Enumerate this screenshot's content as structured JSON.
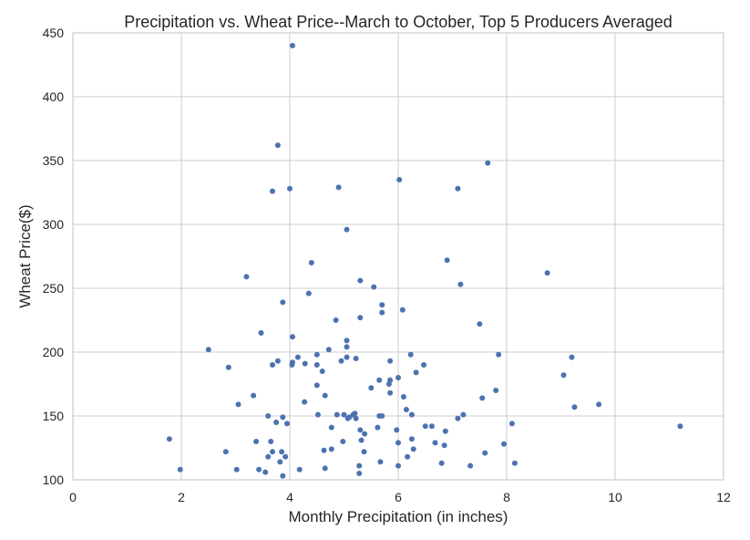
{
  "chart_data": {
    "type": "scatter",
    "title": "Precipitation vs. Wheat Price--March to October, Top 5 Producers Averaged",
    "xlabel": "Monthly Precipitation (in inches)",
    "ylabel": "Wheat Price($)",
    "xlim": [
      0,
      12
    ],
    "ylim": [
      100,
      450
    ],
    "xticks": [
      0,
      2,
      4,
      6,
      8,
      10,
      12
    ],
    "yticks": [
      100,
      150,
      200,
      250,
      300,
      350,
      400,
      450
    ],
    "grid": true,
    "marker_color": "#4c72b0",
    "series": [
      {
        "points": [
          [
            4.05,
            440
          ],
          [
            3.78,
            362
          ],
          [
            7.65,
            348
          ],
          [
            6.02,
            335
          ],
          [
            4.9,
            329
          ],
          [
            4.0,
            328
          ],
          [
            3.68,
            326
          ],
          [
            7.1,
            328
          ],
          [
            5.05,
            296
          ],
          [
            6.9,
            272
          ],
          [
            4.4,
            270
          ],
          [
            8.75,
            262
          ],
          [
            3.2,
            259
          ],
          [
            5.3,
            256
          ],
          [
            7.15,
            253
          ],
          [
            5.55,
            251
          ],
          [
            4.35,
            246
          ],
          [
            3.87,
            239
          ],
          [
            5.7,
            237
          ],
          [
            6.08,
            233
          ],
          [
            5.7,
            231
          ],
          [
            5.3,
            227
          ],
          [
            4.85,
            225
          ],
          [
            7.5,
            222
          ],
          [
            3.47,
            215
          ],
          [
            4.05,
            212
          ],
          [
            5.05,
            209
          ],
          [
            5.05,
            204
          ],
          [
            2.5,
            202
          ],
          [
            4.72,
            202
          ],
          [
            4.5,
            198
          ],
          [
            6.23,
            198
          ],
          [
            7.85,
            198
          ],
          [
            4.15,
            196
          ],
          [
            5.05,
            196
          ],
          [
            9.2,
            196
          ],
          [
            3.78,
            193
          ],
          [
            5.22,
            195
          ],
          [
            5.85,
            193
          ],
          [
            4.05,
            192
          ],
          [
            4.95,
            193
          ],
          [
            4.28,
            191
          ],
          [
            3.68,
            190
          ],
          [
            4.04,
            190
          ],
          [
            4.5,
            190
          ],
          [
            6.47,
            190
          ],
          [
            2.87,
            188
          ],
          [
            4.6,
            185
          ],
          [
            6.33,
            184
          ],
          [
            9.05,
            182
          ],
          [
            5.65,
            178
          ],
          [
            6.0,
            180
          ],
          [
            5.85,
            178
          ],
          [
            5.83,
            175
          ],
          [
            4.5,
            174
          ],
          [
            5.5,
            172
          ],
          [
            7.8,
            170
          ],
          [
            5.85,
            168
          ],
          [
            3.33,
            166
          ],
          [
            4.65,
            166
          ],
          [
            6.1,
            165
          ],
          [
            7.55,
            164
          ],
          [
            4.27,
            161
          ],
          [
            3.05,
            159
          ],
          [
            9.7,
            159
          ],
          [
            9.25,
            157
          ],
          [
            6.15,
            155
          ],
          [
            4.52,
            151
          ],
          [
            4.87,
            151
          ],
          [
            5.0,
            151
          ],
          [
            5.17,
            151
          ],
          [
            5.2,
            152
          ],
          [
            6.25,
            151
          ],
          [
            7.2,
            151
          ],
          [
            3.6,
            150
          ],
          [
            3.87,
            149
          ],
          [
            5.1,
            149
          ],
          [
            5.65,
            150
          ],
          [
            5.7,
            150
          ],
          [
            5.07,
            148
          ],
          [
            5.22,
            148
          ],
          [
            7.1,
            148
          ],
          [
            3.75,
            145
          ],
          [
            3.95,
            144
          ],
          [
            8.1,
            144
          ],
          [
            5.62,
            141
          ],
          [
            6.5,
            142
          ],
          [
            6.62,
            142
          ],
          [
            11.2,
            142
          ],
          [
            4.77,
            141
          ],
          [
            5.97,
            139
          ],
          [
            5.3,
            139
          ],
          [
            6.87,
            138
          ],
          [
            5.38,
            136
          ],
          [
            6.25,
            132
          ],
          [
            1.78,
            132
          ],
          [
            3.38,
            130
          ],
          [
            3.65,
            130
          ],
          [
            4.98,
            130
          ],
          [
            5.32,
            131
          ],
          [
            6.0,
            129
          ],
          [
            6.68,
            129
          ],
          [
            6.85,
            127
          ],
          [
            7.95,
            128
          ],
          [
            4.77,
            124
          ],
          [
            4.63,
            123
          ],
          [
            3.85,
            122
          ],
          [
            2.82,
            122
          ],
          [
            3.68,
            122
          ],
          [
            5.37,
            122
          ],
          [
            6.28,
            124
          ],
          [
            7.6,
            121
          ],
          [
            3.92,
            118
          ],
          [
            3.6,
            118
          ],
          [
            6.17,
            118
          ],
          [
            3.82,
            114
          ],
          [
            5.67,
            114
          ],
          [
            6.8,
            113
          ],
          [
            8.15,
            113
          ],
          [
            5.28,
            111
          ],
          [
            6.0,
            111
          ],
          [
            7.33,
            111
          ],
          [
            1.98,
            108
          ],
          [
            3.02,
            108
          ],
          [
            3.43,
            108
          ],
          [
            4.65,
            109
          ],
          [
            4.18,
            108
          ],
          [
            3.55,
            106
          ],
          [
            5.28,
            105
          ],
          [
            3.87,
            103
          ]
        ]
      }
    ]
  }
}
